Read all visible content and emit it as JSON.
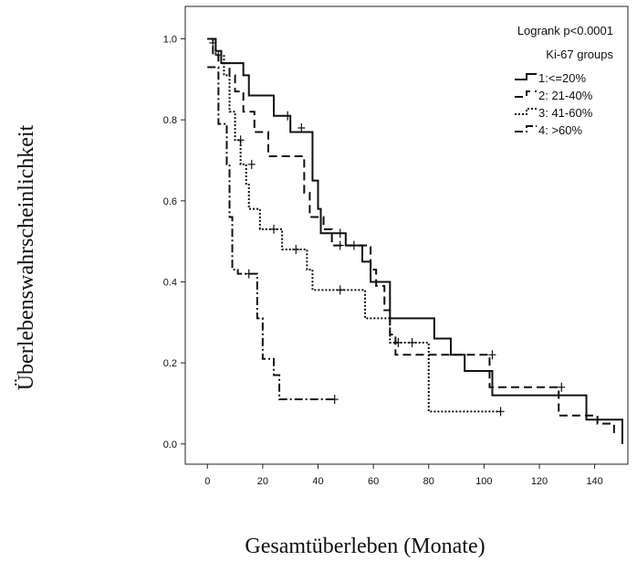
{
  "chart_data": {
    "type": "line",
    "subtype": "kaplan-meier step plot with censor marks",
    "title": "",
    "xlabel": "Gesamtüberleben (Monate)",
    "ylabel": "Überlebenswahrscheinlichkeit",
    "xlim": [
      -8,
      152
    ],
    "ylim": [
      -0.05,
      1.08
    ],
    "xticks": [
      0,
      20,
      40,
      60,
      80,
      100,
      120,
      140
    ],
    "yticks": [
      0.0,
      0.2,
      0.4,
      0.6,
      0.8,
      1.0
    ],
    "ytick_labels": [
      "0.0",
      "0.2",
      "0.4",
      "0.6",
      "0.8",
      "1.0"
    ],
    "grid": false,
    "annotation": "Logrank p<0.0001",
    "legend_title": "Ki-67 groups",
    "legend_position": "top-right",
    "series": [
      {
        "name": "1:<=20%",
        "dash": "solid",
        "steps": [
          [
            0,
            1.0
          ],
          [
            3,
            0.97
          ],
          [
            5,
            0.94
          ],
          [
            9,
            0.94
          ],
          [
            13,
            0.91
          ],
          [
            15,
            0.86
          ],
          [
            20,
            0.86
          ],
          [
            24,
            0.81
          ],
          [
            26,
            0.81
          ],
          [
            30,
            0.77
          ],
          [
            35,
            0.77
          ],
          [
            38,
            0.65
          ],
          [
            40,
            0.58
          ],
          [
            41,
            0.52
          ],
          [
            44,
            0.52
          ],
          [
            47,
            0.52
          ],
          [
            50,
            0.49
          ],
          [
            55,
            0.49
          ],
          [
            56,
            0.45
          ],
          [
            59,
            0.4
          ],
          [
            66,
            0.31
          ],
          [
            70,
            0.31
          ],
          [
            82,
            0.26
          ],
          [
            88,
            0.22
          ],
          [
            93,
            0.18
          ],
          [
            100,
            0.18
          ],
          [
            103,
            0.12
          ],
          [
            137,
            0.12
          ],
          [
            137,
            0.06
          ],
          [
            150,
            0.06
          ],
          [
            150,
            0.0
          ]
        ],
        "censored": [
          [
            2,
            0.99
          ],
          [
            29,
            0.81
          ],
          [
            34,
            0.78
          ],
          [
            48,
            0.52
          ],
          [
            53,
            0.49
          ]
        ]
      },
      {
        "name": "2: 21-40%",
        "dash": "dashed",
        "steps": [
          [
            0,
            1.0
          ],
          [
            2,
            0.96
          ],
          [
            4,
            0.94
          ],
          [
            8,
            0.91
          ],
          [
            10,
            0.87
          ],
          [
            13,
            0.82
          ],
          [
            17,
            0.77
          ],
          [
            20,
            0.77
          ],
          [
            22,
            0.71
          ],
          [
            33,
            0.71
          ],
          [
            35,
            0.62
          ],
          [
            37,
            0.56
          ],
          [
            42,
            0.53
          ],
          [
            45,
            0.49
          ],
          [
            56,
            0.49
          ],
          [
            59,
            0.43
          ],
          [
            61,
            0.39
          ],
          [
            64,
            0.33
          ],
          [
            66,
            0.27
          ],
          [
            68,
            0.22
          ],
          [
            80,
            0.22
          ],
          [
            102,
            0.22
          ],
          [
            102,
            0.14
          ],
          [
            127,
            0.14
          ],
          [
            127,
            0.07
          ],
          [
            141,
            0.07
          ],
          [
            141,
            0.05
          ],
          [
            147,
            0.05
          ],
          [
            147,
            0.02
          ]
        ],
        "censored": [
          [
            48,
            0.49
          ],
          [
            103,
            0.22
          ],
          [
            128,
            0.14
          ]
        ]
      },
      {
        "name": "3: 41-60%",
        "dash": "dotted",
        "steps": [
          [
            0,
            1.0
          ],
          [
            3,
            0.96
          ],
          [
            6,
            0.91
          ],
          [
            8,
            0.82
          ],
          [
            10,
            0.75
          ],
          [
            12,
            0.69
          ],
          [
            14,
            0.64
          ],
          [
            15,
            0.58
          ],
          [
            18,
            0.58
          ],
          [
            19,
            0.53
          ],
          [
            26,
            0.53
          ],
          [
            27,
            0.48
          ],
          [
            33,
            0.48
          ],
          [
            36,
            0.43
          ],
          [
            38,
            0.38
          ],
          [
            46,
            0.38
          ],
          [
            57,
            0.38
          ],
          [
            57,
            0.31
          ],
          [
            62,
            0.31
          ],
          [
            66,
            0.25
          ],
          [
            72,
            0.25
          ],
          [
            80,
            0.25
          ],
          [
            80,
            0.08
          ],
          [
            106,
            0.08
          ]
        ],
        "censored": [
          [
            4,
            0.96
          ],
          [
            12,
            0.75
          ],
          [
            16,
            0.69
          ],
          [
            24,
            0.53
          ],
          [
            32,
            0.48
          ],
          [
            48,
            0.38
          ],
          [
            69,
            0.25
          ],
          [
            74,
            0.25
          ],
          [
            106,
            0.08
          ]
        ]
      },
      {
        "name": "4: >60%",
        "dash": "dashdot",
        "steps": [
          [
            0,
            0.93
          ],
          [
            3,
            0.93
          ],
          [
            4,
            0.79
          ],
          [
            6,
            0.79
          ],
          [
            7,
            0.69
          ],
          [
            8,
            0.56
          ],
          [
            9,
            0.43
          ],
          [
            11,
            0.42
          ],
          [
            17,
            0.42
          ],
          [
            18,
            0.31
          ],
          [
            20,
            0.21
          ],
          [
            24,
            0.17
          ],
          [
            26,
            0.11
          ],
          [
            36,
            0.11
          ],
          [
            46,
            0.11
          ]
        ],
        "censored": [
          [
            15,
            0.42
          ],
          [
            46,
            0.11
          ]
        ]
      }
    ]
  }
}
